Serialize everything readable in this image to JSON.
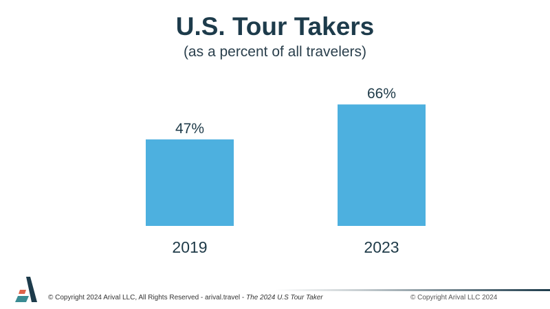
{
  "chart_data": {
    "type": "bar",
    "title": "U.S. Tour Takers",
    "subtitle": "(as a percent of all travelers)",
    "categories": [
      "2019",
      "2023"
    ],
    "values": [
      47,
      66
    ],
    "value_labels": [
      "47%",
      "66%"
    ],
    "ylim": [
      0,
      100
    ],
    "grid": false,
    "bar_color": "#4db0df"
  },
  "footer": {
    "left_text": "© Copyright 2024 Arival LLC, All Rights Reserved - arival.travel - ",
    "left_italic": "The 2024 U.S Tour Taker",
    "right_text": "© Copyright Arival LLC 2024",
    "logo_name": "Arival"
  }
}
